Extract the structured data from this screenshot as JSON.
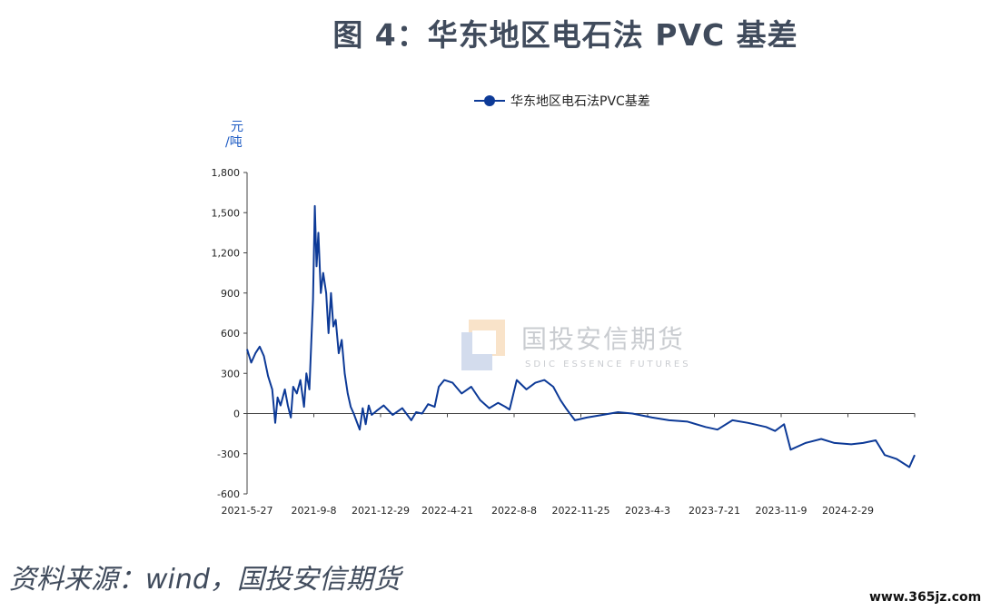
{
  "page": {
    "title": "图 4：华东地区电石法 PVC 基差",
    "source": "资料来源：wind，国投安信期货",
    "site": "www.365jz.com",
    "watermark_cn": "国投安信期货",
    "watermark_en": "SDIC ESSENCE FUTURES"
  },
  "chart_data": {
    "type": "line",
    "title": "",
    "unit": "元/吨",
    "ylim": [
      -600,
      1800
    ],
    "y_ticks": [
      -600,
      -300,
      0,
      300,
      600,
      900,
      1200,
      1500,
      1800
    ],
    "y_tick_labels": [
      "-600",
      "-300",
      "0",
      "300",
      "600",
      "900",
      "1,200",
      "1,500",
      "1,800"
    ],
    "x_tick_labels": [
      "2021-5-27",
      "2021-9-8",
      "2021-12-29",
      "2022-4-21",
      "2022-8-8",
      "2022-11-25",
      "2023-4-3",
      "2023-7-21",
      "2023-11-9",
      "2024-2-29"
    ],
    "x_range": [
      "2021-05-27",
      "2024-06-14"
    ],
    "color": "#0d3a97",
    "grid": false,
    "legend_position": "top-center",
    "series": [
      {
        "name": "华东地区电石法PVC基差",
        "points": [
          [
            "2021-05-27",
            480
          ],
          [
            "2021-06-03",
            380
          ],
          [
            "2021-06-10",
            450
          ],
          [
            "2021-06-17",
            500
          ],
          [
            "2021-06-24",
            430
          ],
          [
            "2021-07-01",
            280
          ],
          [
            "2021-07-08",
            180
          ],
          [
            "2021-07-13",
            -70
          ],
          [
            "2021-07-17",
            120
          ],
          [
            "2021-07-22",
            60
          ],
          [
            "2021-07-29",
            180
          ],
          [
            "2021-08-03",
            60
          ],
          [
            "2021-08-08",
            -30
          ],
          [
            "2021-08-12",
            200
          ],
          [
            "2021-08-18",
            150
          ],
          [
            "2021-08-24",
            250
          ],
          [
            "2021-08-30",
            50
          ],
          [
            "2021-09-03",
            300
          ],
          [
            "2021-09-08",
            180
          ],
          [
            "2021-09-14",
            850
          ],
          [
            "2021-09-17",
            1550
          ],
          [
            "2021-09-20",
            1100
          ],
          [
            "2021-09-23",
            1350
          ],
          [
            "2021-09-27",
            900
          ],
          [
            "2021-10-01",
            1050
          ],
          [
            "2021-10-06",
            900
          ],
          [
            "2021-10-10",
            600
          ],
          [
            "2021-10-14",
            900
          ],
          [
            "2021-10-18",
            650
          ],
          [
            "2021-10-22",
            700
          ],
          [
            "2021-10-27",
            450
          ],
          [
            "2021-11-01",
            550
          ],
          [
            "2021-11-06",
            300
          ],
          [
            "2021-11-11",
            150
          ],
          [
            "2021-11-16",
            50
          ],
          [
            "2021-11-21",
            0
          ],
          [
            "2021-11-26",
            -60
          ],
          [
            "2021-12-01",
            -120
          ],
          [
            "2021-12-06",
            40
          ],
          [
            "2021-12-11",
            -80
          ],
          [
            "2021-12-16",
            60
          ],
          [
            "2021-12-21",
            -10
          ],
          [
            "2021-12-29",
            20
          ],
          [
            "2022-01-10",
            60
          ],
          [
            "2022-01-25",
            -10
          ],
          [
            "2022-02-10",
            40
          ],
          [
            "2022-02-25",
            -50
          ],
          [
            "2022-03-05",
            10
          ],
          [
            "2022-03-15",
            0
          ],
          [
            "2022-03-25",
            70
          ],
          [
            "2022-04-05",
            50
          ],
          [
            "2022-04-12",
            200
          ],
          [
            "2022-04-21",
            250
          ],
          [
            "2022-05-05",
            230
          ],
          [
            "2022-05-20",
            150
          ],
          [
            "2022-06-05",
            200
          ],
          [
            "2022-06-20",
            100
          ],
          [
            "2022-07-05",
            40
          ],
          [
            "2022-07-20",
            80
          ],
          [
            "2022-08-01",
            50
          ],
          [
            "2022-08-08",
            30
          ],
          [
            "2022-08-20",
            250
          ],
          [
            "2022-09-05",
            180
          ],
          [
            "2022-09-20",
            230
          ],
          [
            "2022-10-05",
            250
          ],
          [
            "2022-10-20",
            200
          ],
          [
            "2022-11-01",
            100
          ],
          [
            "2022-11-10",
            40
          ],
          [
            "2022-11-25",
            -50
          ],
          [
            "2022-12-15",
            -30
          ],
          [
            "2023-01-10",
            -10
          ],
          [
            "2023-02-05",
            10
          ],
          [
            "2023-03-01",
            0
          ],
          [
            "2023-04-03",
            -30
          ],
          [
            "2023-05-01",
            -50
          ],
          [
            "2023-06-01",
            -60
          ],
          [
            "2023-07-01",
            -100
          ],
          [
            "2023-07-21",
            -120
          ],
          [
            "2023-08-15",
            -50
          ],
          [
            "2023-09-10",
            -70
          ],
          [
            "2023-10-10",
            -100
          ],
          [
            "2023-10-25",
            -130
          ],
          [
            "2023-11-09",
            -80
          ],
          [
            "2023-11-20",
            -270
          ],
          [
            "2023-12-15",
            -220
          ],
          [
            "2024-01-10",
            -190
          ],
          [
            "2024-02-01",
            -220
          ],
          [
            "2024-02-29",
            -230
          ],
          [
            "2024-03-20",
            -220
          ],
          [
            "2024-04-10",
            -200
          ],
          [
            "2024-04-25",
            -310
          ],
          [
            "2024-05-15",
            -340
          ],
          [
            "2024-06-05",
            -400
          ],
          [
            "2024-06-14",
            -310
          ]
        ]
      }
    ]
  }
}
